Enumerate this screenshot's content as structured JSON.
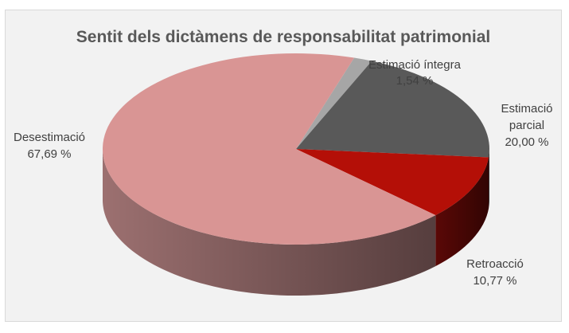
{
  "chart_data": {
    "type": "pie",
    "title": "Sentit dels dictàmens de responsabilitat patrimonial",
    "slices": [
      {
        "name": "Estimació íntegra",
        "value": 1.54,
        "value_label": "1,54 %",
        "color": "#a6a6a6",
        "side_color": "#7f7f7f"
      },
      {
        "name": "Estimació parcial",
        "value": 20.0,
        "value_label": "20,00 %",
        "color": "#595959",
        "side_color": "#3a3a3a"
      },
      {
        "name": "Retroacció",
        "value": 10.77,
        "value_label": "10,77 %",
        "color": "#b40f07",
        "side_color": "#5a0806"
      },
      {
        "name": "Desestimació",
        "value": 67.69,
        "value_label": "67,69 %",
        "color": "#d99594",
        "side_color": "#9c7070"
      }
    ],
    "label_lines": [
      [
        "Estimació íntegra",
        "1,54 %"
      ],
      [
        "Estimació",
        "parcial",
        "20,00 %"
      ],
      [
        "Retroacció",
        "10,77 %"
      ],
      [
        "Desestimació",
        "67,69 %"
      ]
    ],
    "legend": "none"
  }
}
